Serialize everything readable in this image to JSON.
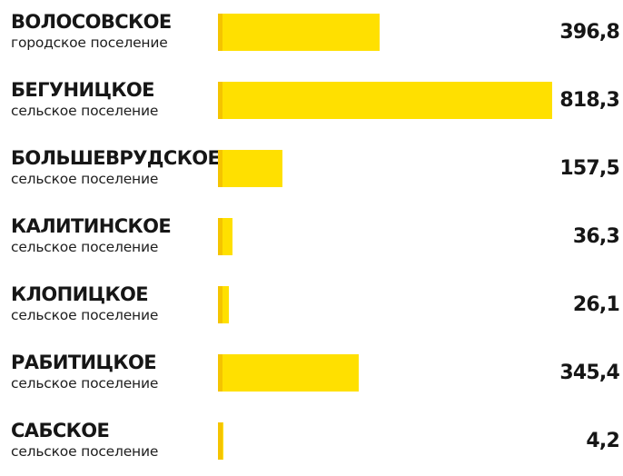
{
  "chart_data": {
    "type": "bar",
    "orientation": "horizontal",
    "title": "",
    "xlabel": "",
    "ylabel": "",
    "xlim": [
      0,
      818.3
    ],
    "grid": false,
    "bar_color": "#ffe000",
    "bar_cap_color": "#f5c400",
    "categories": [
      "ВОЛОСОВСКОЕ",
      "БЕГУНИЦКОЕ",
      "БОЛЬШЕВРУДСКОЕ",
      "КАЛИТИНСКОЕ",
      "КЛОПИЦКОЕ",
      "РАБИТИЦКОЕ",
      "САБСКОЕ"
    ],
    "subtitles": [
      "городское поселение",
      "сельское поселение",
      "сельское поселение",
      "сельское поселение",
      "сельское поселение",
      "сельское поселение",
      "сельское поселение"
    ],
    "values": [
      396.8,
      818.3,
      157.5,
      36.3,
      26.1,
      345.4,
      4.2
    ],
    "value_labels": [
      "396,8",
      "818,3",
      "157,5",
      "36,3",
      "26,1",
      "345,4",
      "4,2"
    ]
  }
}
